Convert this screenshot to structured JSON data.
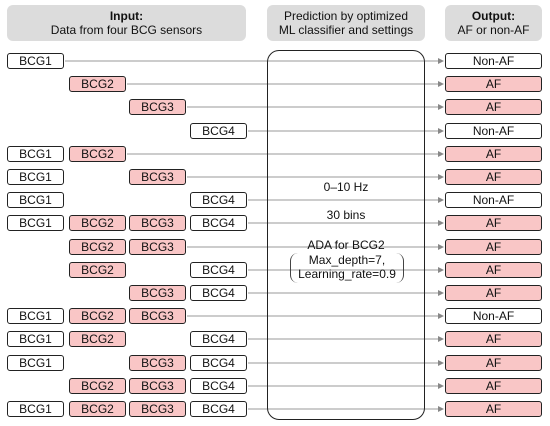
{
  "header": {
    "input_title": "Input:",
    "input_subtitle": "Data from four BCG sensors",
    "prediction_line1": "Prediction by optimized",
    "prediction_line2": "ML classifier and settings",
    "output_title": "Output:",
    "output_subtitle": "AF or non-AF"
  },
  "sensor_labels": [
    "BCG1",
    "BCG2",
    "BCG3",
    "BCG4"
  ],
  "rows": [
    {
      "sensors": [
        1,
        0,
        0,
        0
      ],
      "output": "Non-AF"
    },
    {
      "sensors": [
        0,
        1,
        0,
        0
      ],
      "output": "AF"
    },
    {
      "sensors": [
        0,
        0,
        1,
        0
      ],
      "output": "AF"
    },
    {
      "sensors": [
        0,
        0,
        0,
        1
      ],
      "output": "Non-AF"
    },
    {
      "sensors": [
        1,
        1,
        0,
        0
      ],
      "output": "AF"
    },
    {
      "sensors": [
        1,
        0,
        1,
        0
      ],
      "output": "AF"
    },
    {
      "sensors": [
        1,
        0,
        0,
        1
      ],
      "output": "Non-AF"
    },
    {
      "sensors": [
        1,
        1,
        1,
        1
      ],
      "output": "AF"
    },
    {
      "sensors": [
        0,
        1,
        1,
        0
      ],
      "output": "AF"
    },
    {
      "sensors": [
        0,
        1,
        0,
        1
      ],
      "output": "AF"
    },
    {
      "sensors": [
        0,
        0,
        1,
        1
      ],
      "output": "AF"
    },
    {
      "sensors": [
        1,
        1,
        1,
        0
      ],
      "output": "Non-AF"
    },
    {
      "sensors": [
        1,
        1,
        0,
        1
      ],
      "output": "AF"
    },
    {
      "sensors": [
        1,
        0,
        1,
        1
      ],
      "output": "AF"
    },
    {
      "sensors": [
        0,
        1,
        1,
        1
      ],
      "output": "AF"
    },
    {
      "sensors": [
        1,
        1,
        1,
        1
      ],
      "output": "AF"
    }
  ],
  "classifier": {
    "frequency": "0–10 Hz",
    "bins": "30 bins",
    "model": "ADA for BCG2",
    "param1": "Max_depth=7,",
    "param2": "Learning_rate=0.9"
  }
}
